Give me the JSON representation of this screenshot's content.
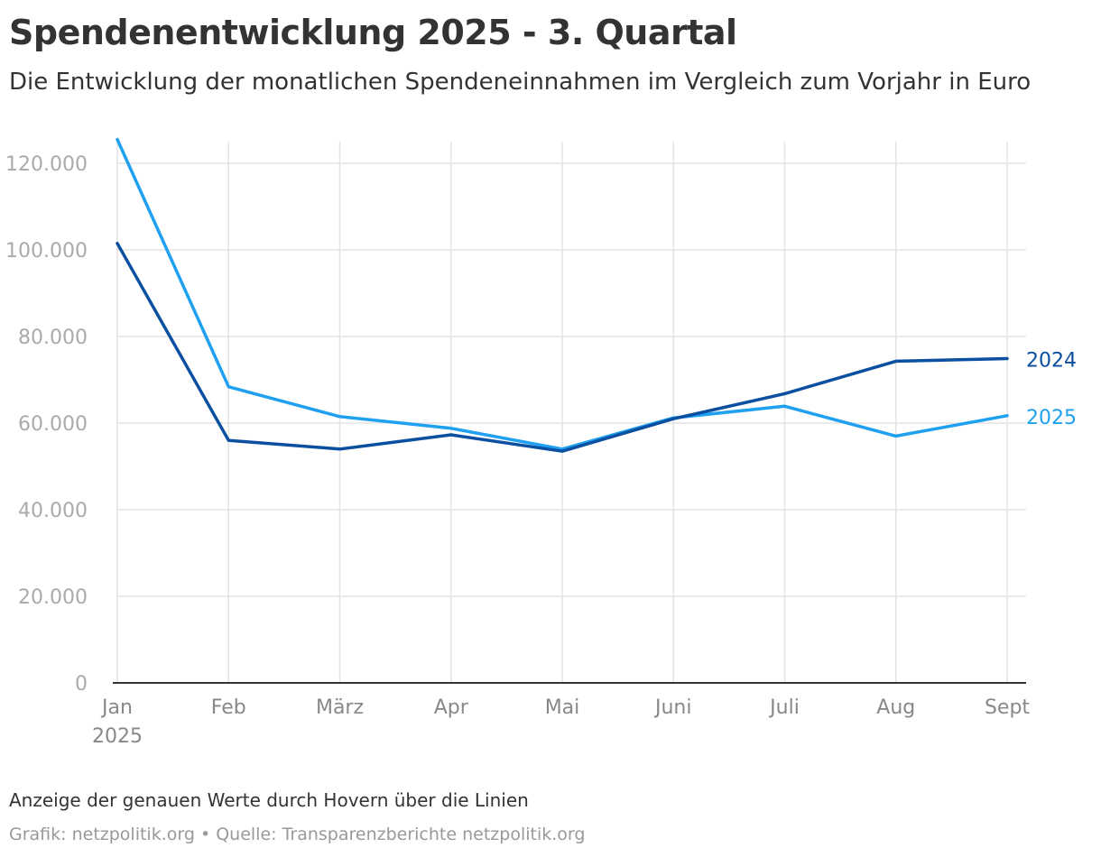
{
  "chart_data": {
    "type": "line",
    "title": "Spendenentwicklung 2025 - 3. Quartal",
    "subtitle": "Die Entwicklung der monatlichen Spendeneinnahmen im Vergleich zum Vorjahr in Euro",
    "categories": [
      "Jan",
      "Feb",
      "März",
      "Apr",
      "Mai",
      "Juni",
      "Juli",
      "Aug",
      "Sept"
    ],
    "first_category_sublabel": "2025",
    "ylim": [
      0,
      125000
    ],
    "yticks": [
      0,
      20000,
      40000,
      60000,
      80000,
      100000,
      120000
    ],
    "ytick_labels": [
      "0",
      "20.000",
      "40.000",
      "60.000",
      "80.000",
      "100.000",
      "120.000"
    ],
    "xlabel": "",
    "ylabel": "",
    "grid": true,
    "series": [
      {
        "name": "2024",
        "color": "#0a4fa0",
        "values": [
          101500,
          56000,
          54000,
          57300,
          53500,
          61000,
          66800,
          74300,
          74900
        ]
      },
      {
        "name": "2025",
        "color": "#1fa0f0",
        "values": [
          125500,
          68400,
          61500,
          58800,
          54000,
          61200,
          63900,
          57000,
          61700
        ]
      }
    ]
  },
  "footer": {
    "note": "Anzeige der genauen Werte durch Hovern über die Linien",
    "source": "Grafik: netzpolitik.org • Quelle: Transparenzberichte netzpolitik.org"
  },
  "colors": {
    "series_2024": "#0a4fa0",
    "series_2025": "#1fa0f0",
    "grid": "#e3e3e3"
  }
}
